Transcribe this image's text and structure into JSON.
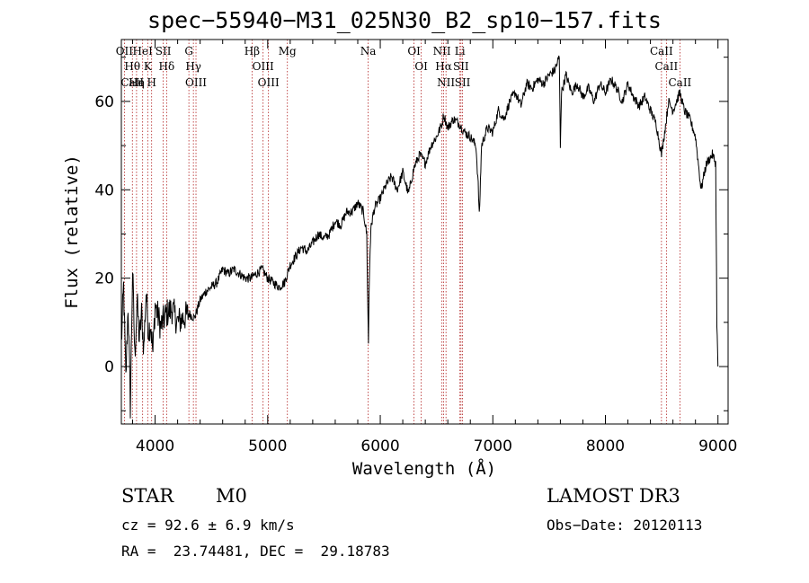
{
  "title": "spec−55940−M31_025N30_B2_sp10−157.fits",
  "info": {
    "class": "STAR",
    "subclass": "M0",
    "survey": "LAMOST DR3",
    "cz": "cz = 92.6 ± 6.9 km/s",
    "obs_date": "Obs−Date: 20120113",
    "radec": "RA =  23.74481, DEC =  29.18783"
  },
  "chart_data": {
    "type": "line",
    "title": "spec−55940−M31_025N30_B2_sp10−157.fits",
    "xlabel": "Wavelength (Å)",
    "ylabel": "Flux (relative)",
    "xlim": [
      3700,
      9090
    ],
    "ylim": [
      -13,
      74
    ],
    "xticks": [
      4000,
      5000,
      6000,
      7000,
      8000,
      9000
    ],
    "yticks": [
      0,
      20,
      40,
      60
    ],
    "line_color": "#000000",
    "marker_color": "#b22222",
    "series": [
      {
        "name": "flux",
        "x": [
          3700,
          3720,
          3740,
          3760,
          3780,
          3800,
          3820,
          3840,
          3860,
          3880,
          3900,
          3920,
          3940,
          3960,
          3980,
          4000,
          4050,
          4100,
          4150,
          4200,
          4250,
          4300,
          4350,
          4400,
          4450,
          4500,
          4550,
          4600,
          4650,
          4700,
          4750,
          4800,
          4850,
          4900,
          4950,
          5000,
          5050,
          5100,
          5150,
          5200,
          5250,
          5300,
          5350,
          5400,
          5450,
          5500,
          5550,
          5600,
          5650,
          5700,
          5750,
          5800,
          5850,
          5880,
          5890,
          5895,
          5900,
          5910,
          5920,
          5950,
          6000,
          6050,
          6100,
          6150,
          6200,
          6250,
          6300,
          6350,
          6400,
          6450,
          6500,
          6550,
          6563,
          6600,
          6650,
          6700,
          6750,
          6800,
          6850,
          6870,
          6880,
          6890,
          6900,
          6950,
          7000,
          7050,
          7100,
          7150,
          7200,
          7250,
          7300,
          7350,
          7400,
          7450,
          7500,
          7550,
          7590,
          7600,
          7610,
          7650,
          7700,
          7750,
          7800,
          7850,
          7900,
          7950,
          8000,
          8050,
          8100,
          8150,
          8200,
          8250,
          8300,
          8350,
          8400,
          8450,
          8498,
          8542,
          8560,
          8600,
          8662,
          8700,
          8750,
          8800,
          8830,
          8850,
          8880,
          8900,
          8950,
          8980,
          8990,
          9000
        ],
        "values": [
          5,
          18,
          -3,
          14,
          -9,
          22,
          2,
          15,
          6,
          12,
          4,
          17,
          8,
          10,
          3,
          14,
          9,
          12,
          13,
          10,
          11,
          12,
          11,
          15,
          17,
          18,
          19,
          22,
          21,
          22,
          21,
          20,
          20,
          21,
          22,
          20,
          19,
          18,
          19,
          23,
          25,
          27,
          26,
          28,
          30,
          29,
          30,
          33,
          32,
          35,
          35,
          37,
          35,
          30,
          12,
          5,
          16,
          27,
          32,
          36,
          38,
          41,
          43,
          40,
          44,
          39,
          45,
          48,
          46,
          50,
          52,
          55,
          57,
          54,
          56,
          55,
          53,
          52,
          50,
          41,
          34,
          42,
          50,
          54,
          53,
          58,
          56,
          60,
          62,
          59,
          64,
          63,
          65,
          64,
          66,
          67,
          70,
          50,
          62,
          66,
          62,
          64,
          61,
          63,
          60,
          64,
          62,
          65,
          63,
          60,
          64,
          61,
          59,
          61,
          58,
          55,
          48,
          56,
          60,
          58,
          62,
          58,
          56,
          52,
          45,
          40,
          44,
          46,
          48,
          46,
          10,
          0
        ]
      }
    ],
    "lines": [
      {
        "wave": 3727,
        "labels": [
          "OII"
        ]
      },
      {
        "wave": 3798,
        "labels": [
          "Hθ",
          "CaII"
        ]
      },
      {
        "wave": 3835,
        "labels": [
          "He",
          "Hη"
        ]
      },
      {
        "wave": 3889,
        "labels": [
          "HeI"
        ]
      },
      {
        "wave": 3934,
        "labels": [
          "K"
        ]
      },
      {
        "wave": 3969,
        "labels": [
          "H"
        ]
      },
      {
        "wave": 4072,
        "labels": [
          "SII"
        ]
      },
      {
        "wave": 4102,
        "labels": [
          "Hδ"
        ]
      },
      {
        "wave": 4300,
        "labels": [
          "G"
        ]
      },
      {
        "wave": 4340,
        "labels": [
          "Hγ"
        ]
      },
      {
        "wave": 4363,
        "labels": [
          "OIII"
        ]
      },
      {
        "wave": 4861,
        "labels": [
          "Hβ"
        ]
      },
      {
        "wave": 4959,
        "labels": [
          "OIII"
        ]
      },
      {
        "wave": 5007,
        "labels": [
          "OIII"
        ]
      },
      {
        "wave": 5175,
        "labels": [
          "Mg"
        ]
      },
      {
        "wave": 5893,
        "labels": [
          "Na"
        ]
      },
      {
        "wave": 6300,
        "labels": [
          "OI"
        ]
      },
      {
        "wave": 6364,
        "labels": [
          "OI"
        ]
      },
      {
        "wave": 6548,
        "labels": [
          "NII"
        ]
      },
      {
        "wave": 6563,
        "labels": [
          "Hα"
        ]
      },
      {
        "wave": 6584,
        "labels": [
          "NII"
        ]
      },
      {
        "wave": 6708,
        "labels": [
          "Li"
        ]
      },
      {
        "wave": 6717,
        "labels": [
          "SII"
        ]
      },
      {
        "wave": 6731,
        "labels": [
          "SII"
        ]
      },
      {
        "wave": 8498,
        "labels": [
          "CaII"
        ]
      },
      {
        "wave": 8542,
        "labels": [
          "CaII"
        ]
      },
      {
        "wave": 8662,
        "labels": [
          "CaII"
        ]
      }
    ]
  }
}
